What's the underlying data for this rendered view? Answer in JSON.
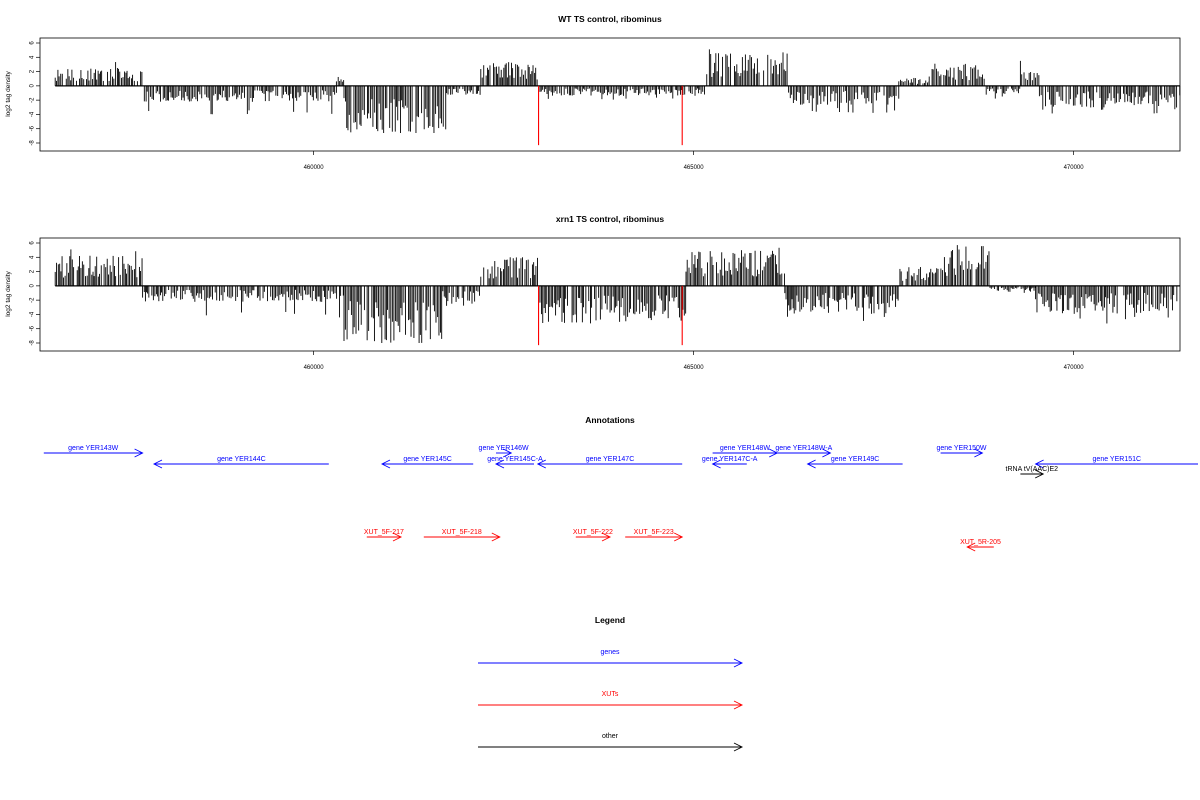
{
  "chart_data": [
    {
      "type": "bar",
      "title": "WT TS control, ribominus",
      "ylabel": "log2 tag density",
      "xlabel": "",
      "xlim": [
        456400,
        471400
      ],
      "ylim": [
        -8,
        6
      ],
      "yticks": [
        "6",
        "4",
        "2",
        "0",
        "-2",
        "-4",
        "-6",
        "-8"
      ],
      "xticks": [
        {
          "x": 460000,
          "label": "460000"
        },
        {
          "x": 465000,
          "label": "465000"
        },
        {
          "x": 470000,
          "label": "470000"
        }
      ],
      "bar_color": "#000000",
      "highlight_color": "#ff0000",
      "highlight_values": [
        {
          "x": 462960,
          "y": -8.3
        },
        {
          "x": 464850,
          "y": -8.3
        }
      ],
      "profile": [
        {
          "from": 456600,
          "to": 457750,
          "dir": 1,
          "amp": 1.8,
          "peak": 3.8
        },
        {
          "from": 457750,
          "to": 460300,
          "dir": -1,
          "amp": 1.6,
          "peak": 4.2
        },
        {
          "from": 460300,
          "to": 460400,
          "dir": 1,
          "amp": 1.0,
          "peak": 1.5
        },
        {
          "from": 460400,
          "to": 461750,
          "dir": -1,
          "amp": 4.8,
          "peak": 6.6
        },
        {
          "from": 461750,
          "to": 462200,
          "dir": -1,
          "amp": 0.9,
          "peak": 1.3
        },
        {
          "from": 462200,
          "to": 462960,
          "dir": 1,
          "amp": 2.4,
          "peak": 3.4
        },
        {
          "from": 462960,
          "to": 465150,
          "dir": -1,
          "amp": 1.0,
          "peak": 2.0
        },
        {
          "from": 465150,
          "to": 466250,
          "dir": 1,
          "amp": 3.4,
          "peak": 5.4
        },
        {
          "from": 466250,
          "to": 467700,
          "dir": -1,
          "amp": 1.9,
          "peak": 3.8
        },
        {
          "from": 467700,
          "to": 468100,
          "dir": 1,
          "amp": 0.8,
          "peak": 2.2
        },
        {
          "from": 468100,
          "to": 468850,
          "dir": 1,
          "amp": 2.2,
          "peak": 3.5
        },
        {
          "from": 468850,
          "to": 469300,
          "dir": -1,
          "amp": 0.9,
          "peak": 1.8
        },
        {
          "from": 469300,
          "to": 469550,
          "dir": 1,
          "amp": 1.6,
          "peak": 3.7
        },
        {
          "from": 469550,
          "to": 471400,
          "dir": -1,
          "amp": 2.2,
          "peak": 3.9
        }
      ]
    },
    {
      "type": "bar",
      "title": "xrn1 TS control, ribominus",
      "ylabel": "log2 tag density",
      "xlabel": "",
      "xlim": [
        456400,
        471400
      ],
      "ylim": [
        -8,
        6
      ],
      "yticks": [
        "6",
        "4",
        "2",
        "0",
        "-2",
        "-4",
        "-6",
        "-8"
      ],
      "xticks": [
        {
          "x": 460000,
          "label": "460000"
        },
        {
          "x": 465000,
          "label": "465000"
        },
        {
          "x": 470000,
          "label": "470000"
        }
      ],
      "bar_color": "#000000",
      "highlight_color": "#ff0000",
      "highlight_values": [
        {
          "x": 462960,
          "y": -8.3
        },
        {
          "x": 464850,
          "y": -8.3
        }
      ],
      "profile": [
        {
          "from": 456600,
          "to": 457750,
          "dir": 1,
          "amp": 3.0,
          "peak": 5.2
        },
        {
          "from": 457750,
          "to": 460400,
          "dir": -1,
          "amp": 1.6,
          "peak": 4.5
        },
        {
          "from": 460400,
          "to": 461700,
          "dir": -1,
          "amp": 5.8,
          "peak": 8.0
        },
        {
          "from": 461700,
          "to": 462200,
          "dir": -1,
          "amp": 2.0,
          "peak": 3.0
        },
        {
          "from": 462200,
          "to": 462960,
          "dir": 1,
          "amp": 3.0,
          "peak": 4.0
        },
        {
          "from": 462960,
          "to": 464900,
          "dir": -1,
          "amp": 3.8,
          "peak": 5.5
        },
        {
          "from": 464900,
          "to": 466200,
          "dir": 1,
          "amp": 3.6,
          "peak": 5.8
        },
        {
          "from": 466200,
          "to": 467700,
          "dir": -1,
          "amp": 2.8,
          "peak": 5.0
        },
        {
          "from": 467700,
          "to": 468300,
          "dir": 1,
          "amp": 1.8,
          "peak": 2.8
        },
        {
          "from": 468300,
          "to": 468900,
          "dir": 1,
          "amp": 4.0,
          "peak": 6.0
        },
        {
          "from": 468900,
          "to": 469500,
          "dir": -1,
          "amp": 0.6,
          "peak": 1.2
        },
        {
          "from": 469500,
          "to": 471400,
          "dir": -1,
          "amp": 2.8,
          "peak": 5.3
        }
      ]
    }
  ],
  "annotations": {
    "title": "Annotations",
    "features": [
      {
        "label": "gene YER143W",
        "type": "gene",
        "strand": "+",
        "start": 456450,
        "end": 457750,
        "row": 0
      },
      {
        "label": "gene YER144C",
        "type": "gene",
        "strand": "-",
        "start": 457900,
        "end": 460200,
        "row": 1
      },
      {
        "label": "gene YER145C",
        "type": "gene",
        "strand": "-",
        "start": 460900,
        "end": 462100,
        "row": 1
      },
      {
        "label": "gene YER146W",
        "type": "gene",
        "strand": "+",
        "start": 462400,
        "end": 462600,
        "row": 0
      },
      {
        "label": "gene YER145C-A",
        "type": "gene",
        "strand": "-",
        "start": 462400,
        "end": 462900,
        "row": 1
      },
      {
        "label": "gene YER147C",
        "type": "gene",
        "strand": "-",
        "start": 462950,
        "end": 464850,
        "row": 1
      },
      {
        "label": "gene YER148W",
        "type": "gene",
        "strand": "+",
        "start": 465250,
        "end": 466100,
        "row": 0
      },
      {
        "label": "gene YER147C-A",
        "type": "gene",
        "strand": "-",
        "start": 465250,
        "end": 465700,
        "row": 1
      },
      {
        "label": "gene YER148W-A",
        "type": "gene",
        "strand": "+",
        "start": 466100,
        "end": 466800,
        "row": 0
      },
      {
        "label": "gene YER149C",
        "type": "gene",
        "strand": "-",
        "start": 466500,
        "end": 467750,
        "row": 1
      },
      {
        "label": "gene YER150W",
        "type": "gene",
        "strand": "+",
        "start": 468250,
        "end": 468800,
        "row": 0
      },
      {
        "label": "gene YER151C",
        "type": "gene",
        "strand": "-",
        "start": 469500,
        "end": 471700,
        "row": 1
      },
      {
        "label": "tRNA tV(AAC)E2",
        "type": "other",
        "strand": "+",
        "start": 469300,
        "end": 469600,
        "row": 2
      },
      {
        "label": "XUT_5F-217",
        "type": "xut",
        "strand": "+",
        "start": 460700,
        "end": 461150,
        "row": 5
      },
      {
        "label": "XUT_5F-218",
        "type": "xut",
        "strand": "+",
        "start": 461450,
        "end": 462450,
        "row": 5
      },
      {
        "label": "XUT_5F-222",
        "type": "xut",
        "strand": "+",
        "start": 463450,
        "end": 463900,
        "row": 5
      },
      {
        "label": "XUT_5F-223",
        "type": "xut",
        "strand": "+",
        "start": 464100,
        "end": 464850,
        "row": 5
      },
      {
        "label": "XUT_5R-205",
        "type": "xut",
        "strand": "-",
        "start": 468600,
        "end": 468950,
        "row": 6
      }
    ]
  },
  "legend": {
    "title": "Legend",
    "items": [
      {
        "label": "genes",
        "color": "#0000ff"
      },
      {
        "label": "XUTs",
        "color": "#ff0000"
      },
      {
        "label": "other",
        "color": "#000000"
      }
    ]
  },
  "colors": {
    "gene": "#0000ff",
    "xut": "#ff0000",
    "other": "#000000"
  }
}
